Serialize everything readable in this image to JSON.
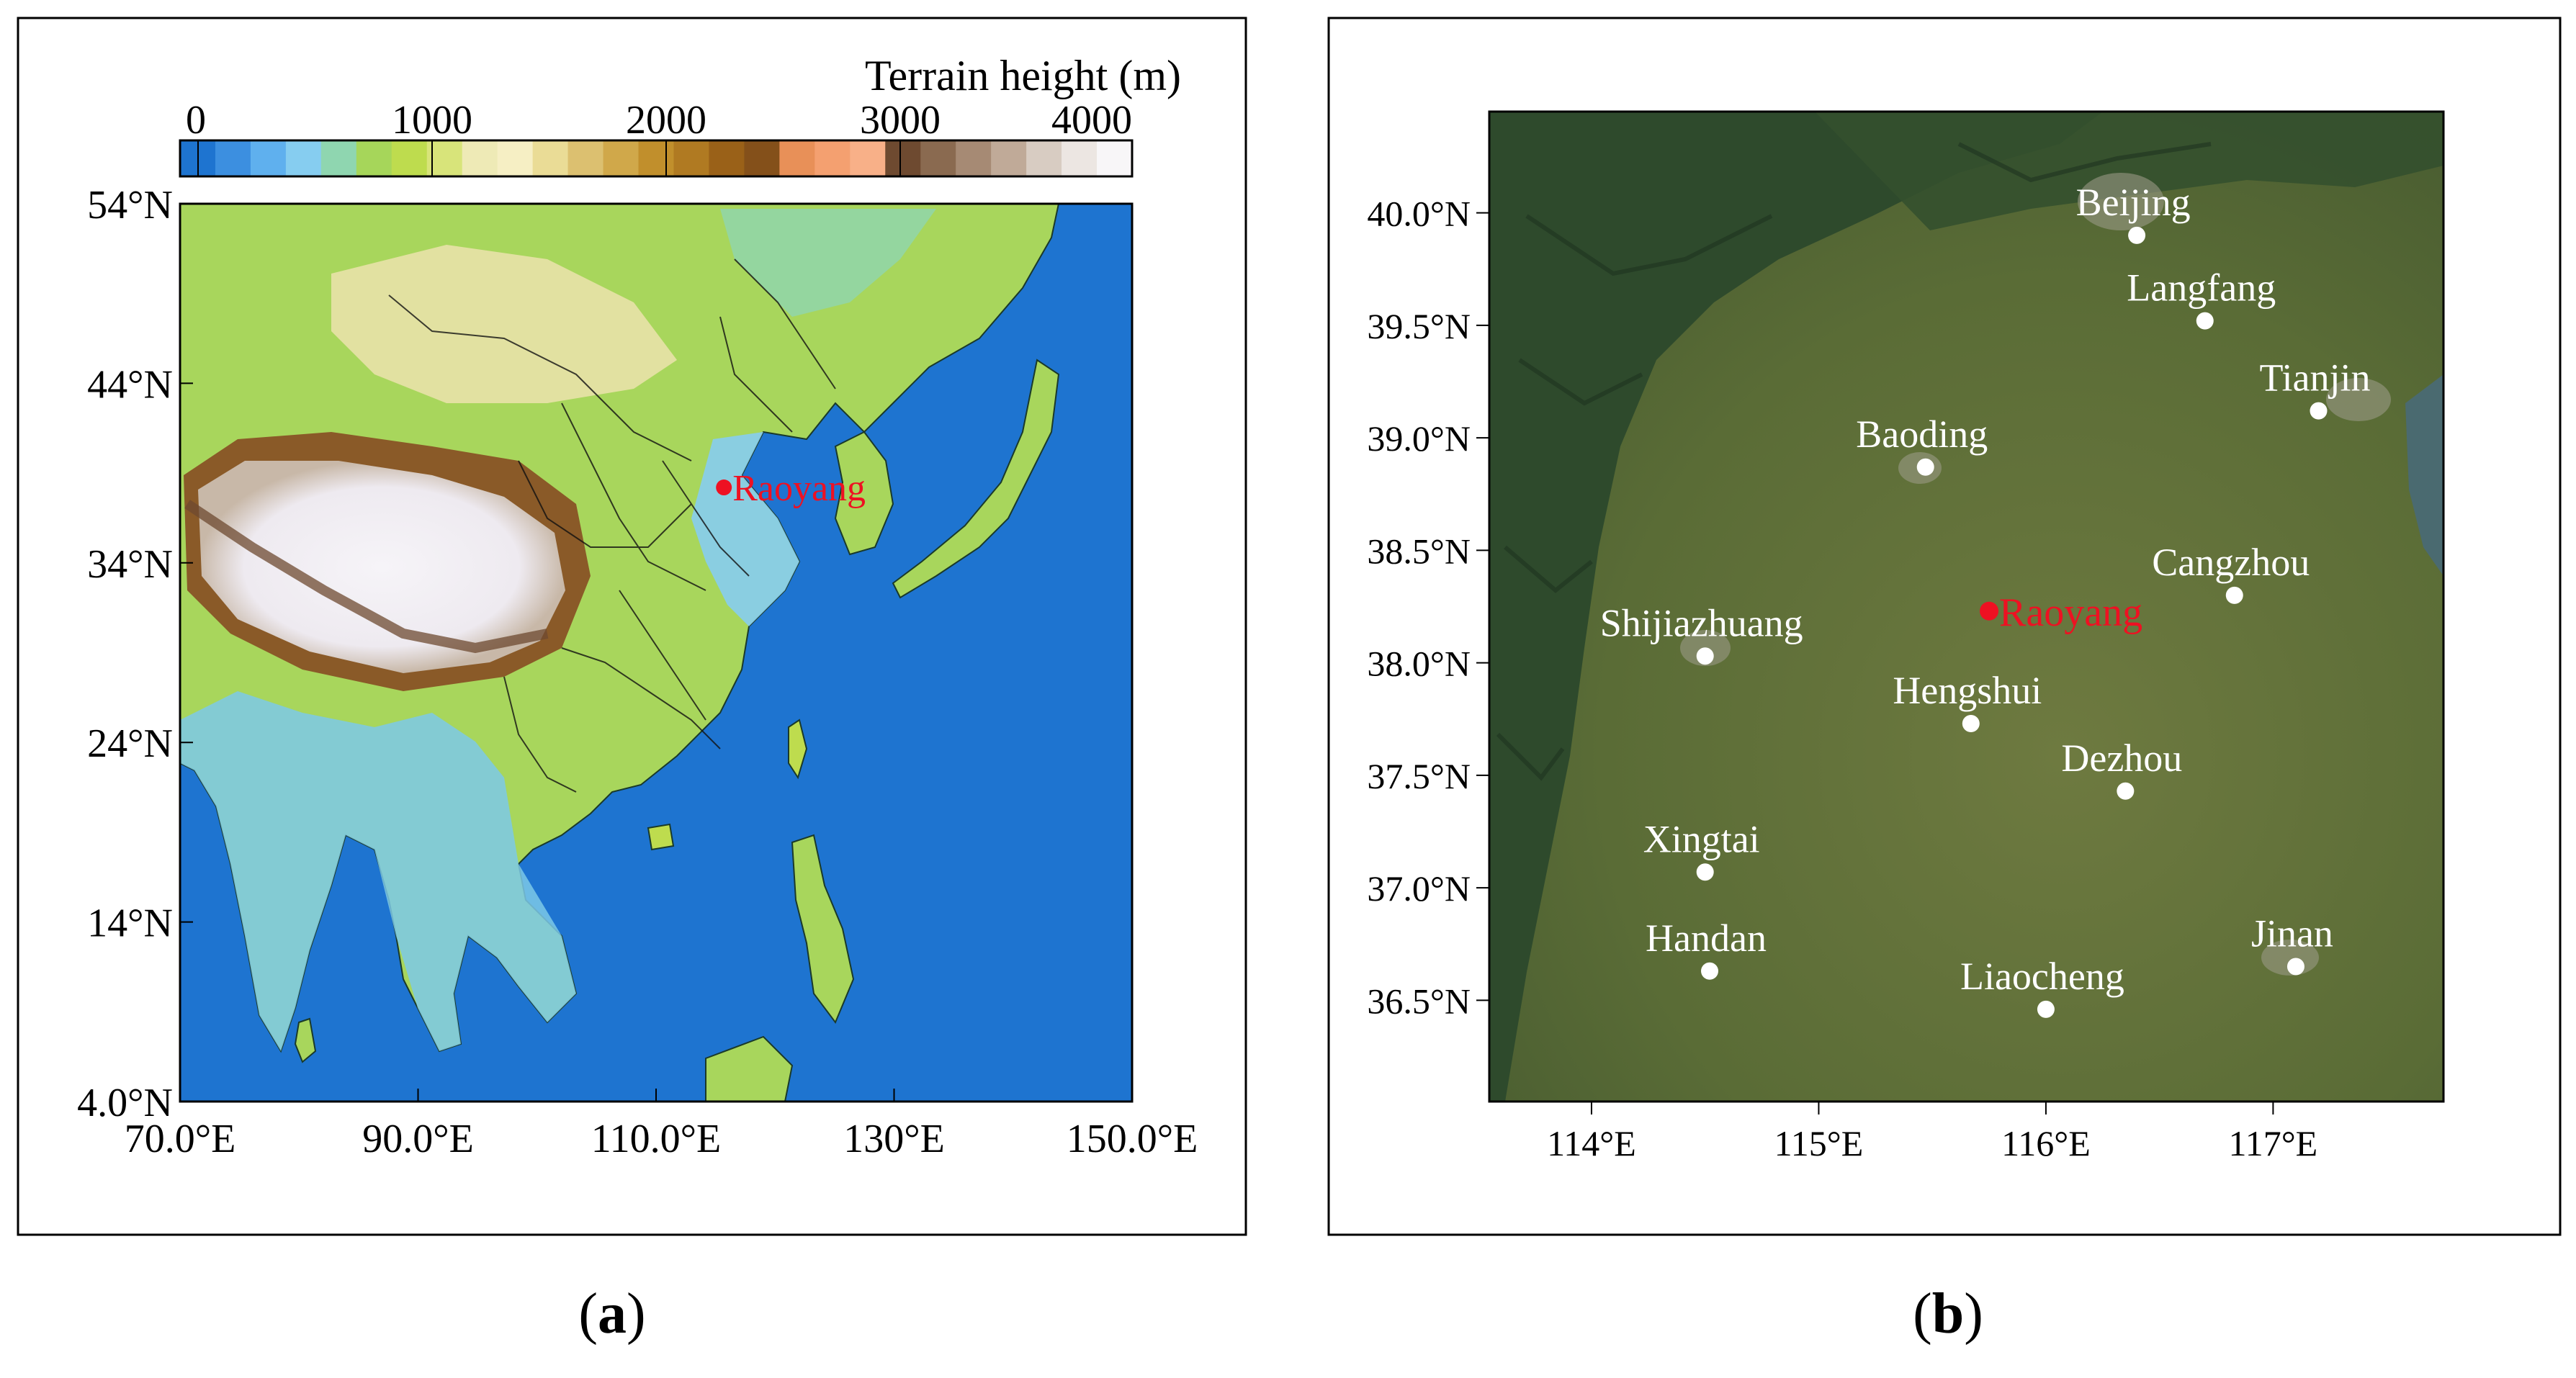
{
  "panel_a": {
    "colorbar": {
      "title": "Terrain height (m)",
      "ticks": [
        "0",
        "1000",
        "2000",
        "3000",
        "4000"
      ],
      "colors": [
        "#1e74d0",
        "#3c8fe0",
        "#5fb0ee",
        "#86cdf0",
        "#8fd6b0",
        "#a6d65a",
        "#bedc4e",
        "#d8e47a",
        "#eeeab6",
        "#f6efc4",
        "#eadc96",
        "#dcc070",
        "#d0a84a",
        "#c18f2c",
        "#b07a22",
        "#9a6118",
        "#84501a",
        "#e89058",
        "#f4a070",
        "#f8b088",
        "#6e4a30",
        "#8a6a50",
        "#a68a74",
        "#c0aa98",
        "#d8ccc2",
        "#ece6e2",
        "#f8f6f8"
      ]
    },
    "y_ticks": [
      "54°N",
      "44°N",
      "34°N",
      "24°N",
      "14°N",
      "4.0°N"
    ],
    "x_ticks": [
      "70.0°E",
      "90.0°E",
      "110.0°E",
      "130°E",
      "150.0°E"
    ],
    "station": {
      "label": "Raoyang",
      "lon": 115.7,
      "lat": 38.2
    },
    "caption_letter": "a",
    "colors": {
      "ocean": "#1e74d0",
      "station": "#ee1122"
    }
  },
  "panel_b": {
    "y_ticks": [
      "40.0°N",
      "39.5°N",
      "39.0°N",
      "38.5°N",
      "38.0°N",
      "37.5°N",
      "37.0°N",
      "36.5°N"
    ],
    "x_ticks": [
      "114°E",
      "115°E",
      "116°E",
      "117°E"
    ],
    "cities": [
      {
        "name": "Beijing",
        "lon": 116.4,
        "lat": 39.9
      },
      {
        "name": "Langfang",
        "lon": 116.7,
        "lat": 39.52
      },
      {
        "name": "Tianjin",
        "lon": 117.2,
        "lat": 39.12
      },
      {
        "name": "Baoding",
        "lon": 115.47,
        "lat": 38.87
      },
      {
        "name": "Cangzhou",
        "lon": 116.83,
        "lat": 38.3
      },
      {
        "name": "Shijiazhuang",
        "lon": 114.5,
        "lat": 38.03
      },
      {
        "name": "Hengshui",
        "lon": 115.67,
        "lat": 37.73
      },
      {
        "name": "Dezhou",
        "lon": 116.35,
        "lat": 37.43
      },
      {
        "name": "Xingtai",
        "lon": 114.5,
        "lat": 37.07
      },
      {
        "name": "Handan",
        "lon": 114.52,
        "lat": 36.63
      },
      {
        "name": "Liaocheng",
        "lon": 116.0,
        "lat": 36.46
      },
      {
        "name": "Jinan",
        "lon": 117.1,
        "lat": 36.65
      }
    ],
    "station": {
      "label": "Raoyang",
      "lon": 115.75,
      "lat": 38.23
    },
    "caption_letter": "b",
    "colors": {
      "station": "#ee1122",
      "city": "#ffffff"
    }
  }
}
